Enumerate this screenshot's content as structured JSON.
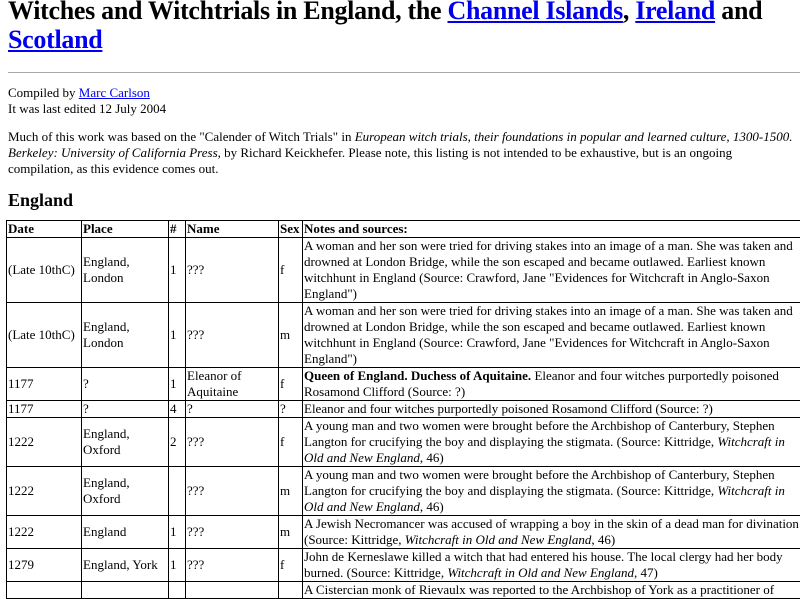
{
  "title": {
    "prefix": "Witches and Witchtrials in England, the ",
    "link1": "Channel Islands",
    "sep": ", ",
    "link2": "Ireland",
    "mid": " and ",
    "link3": "Scotland"
  },
  "compiled": {
    "label": "Compiled by ",
    "author": "Marc Carlson",
    "edited": "It was last edited 12 July 2004"
  },
  "intro": {
    "a": "Much of this work was based on the \"Calender of Witch Trials\" in ",
    "i": "European witch trials, their foundations in popular and learned culture, 1300-1500. Berkeley: University of California Press,",
    "b": " by Richard Keickhefer.  Please note, this listing is not intended to be exhaustive, but is an ongoing compilation, as this evidence comes out."
  },
  "section": "England",
  "table": {
    "headers": [
      "Date",
      "Place",
      "#",
      "Name",
      "Sex",
      "Notes and sources:"
    ],
    "rows": [
      {
        "date": "(Late 10thC)",
        "place": "England, London",
        "num": "1",
        "name": "???",
        "sex": "f",
        "bold": "",
        "notes": "A woman and her son were tried for driving stakes into an image of a man.  She was taken and drowned at London Bridge, while the son escaped and became outlawed.   Earliest known witchhunt in England (Source: Crawford, Jane  \"Evidences for Witchcraft in Anglo-Saxon England\")",
        "ital": "",
        "tail": ""
      },
      {
        "date": "(Late 10thC)",
        "place": "England, London",
        "num": "1",
        "name": "???",
        "sex": "m",
        "bold": "",
        "notes": "A woman and her son were tried for driving stakes into an image of a man.  She was taken and drowned at London Bridge, while the son escaped and became outlawed.   Earliest known witchhunt in England (Source: Crawford, Jane  \"Evidences for Witchcraft in Anglo-Saxon England\")",
        "ital": "",
        "tail": ""
      },
      {
        "date": "1177",
        "place": "?",
        "num": "1",
        "name": "Eleanor of Aquitaine",
        "sex": "f",
        "bold": "Queen of England.  Duchess of Aquitaine.",
        "notes": " Eleanor and four witches purportedly poisoned Rosamond Clifford (Source: ?)",
        "ital": "",
        "tail": ""
      },
      {
        "date": "1177",
        "place": "?",
        "num": "4",
        "name": "?",
        "sex": "?",
        "bold": "",
        "notes": "Eleanor and four witches purportedly poisoned Rosamond Clifford (Source: ?)",
        "ital": "",
        "tail": ""
      },
      {
        "date": "1222",
        "place": "England, Oxford",
        "num": "2",
        "name": "???",
        "sex": "f",
        "bold": "",
        "notes": "A young man and two women were brought before the Archbishop of Canterbury, Stephen Langton for crucifying the boy and displaying the stigmata. (Source: Kittridge, ",
        "ital": "Witchcraft in Old and New England",
        "tail": ", 46)"
      },
      {
        "date": "1222",
        "place": "England, Oxford",
        "num": "",
        "name": "???",
        "sex": "m",
        "bold": "",
        "notes": "A young man and two women were brought before the Archbishop of Canterbury, Stephen Langton for crucifying the boy and displaying the stigmata. (Source: Kittridge, ",
        "ital": "Witchcraft in Old and New England",
        "tail": ", 46)"
      },
      {
        "date": "1222",
        "place": "England",
        "num": "1",
        "name": "???",
        "sex": "m",
        "bold": "",
        "notes": "A Jewish Necromancer was accused of wrapping a boy in the skin of a dead man for divination (Source: Kittridge, ",
        "ital": "Witchcraft in Old and New England",
        "tail": ", 46)"
      },
      {
        "date": "1279",
        "place": "England, York",
        "num": "1",
        "name": "???",
        "sex": "f",
        "bold": "",
        "notes": "John de Kerneslawe killed a witch that had entered his house.  The local clergy had her body burned. (Source: Kittridge, ",
        "ital": "Witchcraft in Old and New England",
        "tail": ", 47)"
      },
      {
        "date": "",
        "place": "",
        "num": "",
        "name": "",
        "sex": "",
        "bold": "",
        "notes": "A Cistercian monk of Rievaulx was reported to the Archbishop of York as a practitioner of",
        "ital": "",
        "tail": ""
      }
    ]
  }
}
